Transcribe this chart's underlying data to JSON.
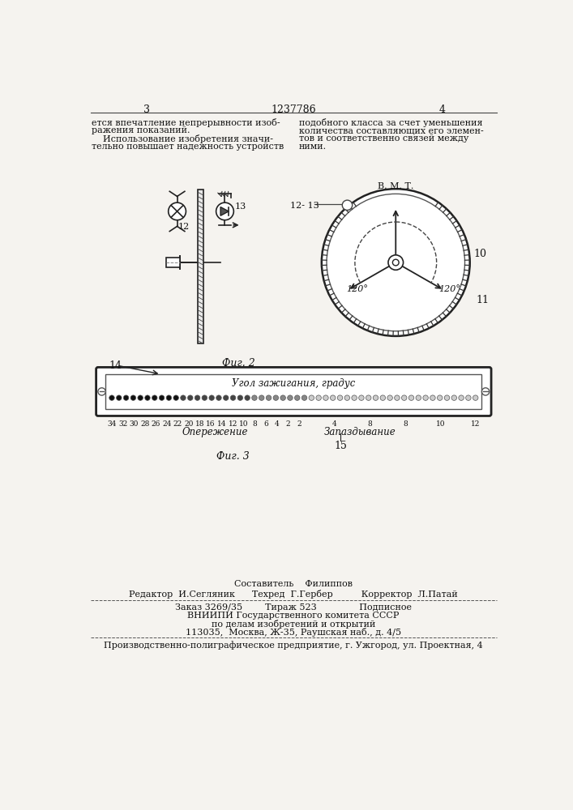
{
  "bg_color": "#f5f3ef",
  "page_number_left": "3",
  "page_number_center": "1237786",
  "page_number_right": "4",
  "text_col1_lines": [
    "ется впечатление непрерывности изоб-",
    "ражения показаний.",
    "    Использование изобретения значи-",
    "тельно повышает надежность устройств"
  ],
  "text_col2_lines": [
    "подобного класса за счет уменьшения",
    "количества составляющих его элемен-",
    "тов и соответственно связей между",
    "ними."
  ],
  "fig2_label": "Фиг. 2",
  "fig3_label": "Фиг. 3",
  "label_12_fig1": "12",
  "label_13_fig1": "13",
  "label_10": "10",
  "label_11": "11",
  "label_12_13": "12- 13",
  "label_vmt": "В. М. Т.",
  "label_120_left": "120°",
  "label_120_right": "120°",
  "label_14": "14",
  "label_15": "15",
  "gauge_title": "Угол зажигания, градус",
  "gauge_left_label": "Опережение",
  "gauge_right_label": "Запаздывание",
  "scale_left": [
    "34",
    "32",
    "30",
    "28",
    "26",
    "24",
    "22",
    "20",
    "18",
    "16",
    "14",
    "12",
    "10",
    "8",
    "6",
    "4",
    "2"
  ],
  "scale_right": [
    "2",
    "4",
    "8",
    "8",
    "10",
    "12"
  ],
  "composer_line1": "Составитель    Филиппов",
  "editor_line": "Редактор  И.Сегляник      Техред  Г.Гербер          Корректор  Л.Патай",
  "order_line": "Заказ 3269/35        Тираж 523               Подписное",
  "vniip_line1": "ВНИИПИ Государственного комитета СССР",
  "vniip_line2": "по делам изобретений и открытий",
  "vniip_line3": "113035,  Москва, Ж-35, Раушская наб., д. 4/5",
  "production_line": "Производственно-полиграфическое предприятие, г. Ужгород, ул. Проектная, 4"
}
